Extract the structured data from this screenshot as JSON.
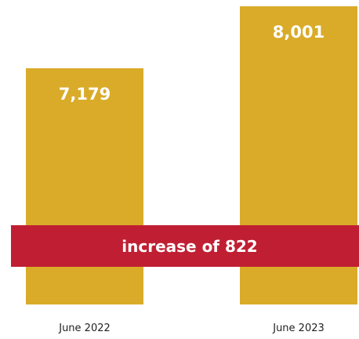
{
  "chart_data": {
    "type": "bar",
    "categories": [
      "June 2022",
      "June 2023"
    ],
    "values": [
      7179,
      8001
    ],
    "value_labels": [
      "7,179",
      "8,001"
    ],
    "title": "",
    "xlabel": "",
    "ylabel": "",
    "grid": false,
    "legend": "none",
    "annotation": "increase of 822"
  },
  "colors": {
    "bar": "#D9AB28",
    "banner": "#C01F33",
    "bar_label": "#ffffff",
    "axis_label": "#222222",
    "banner_text": "#ffffff"
  }
}
